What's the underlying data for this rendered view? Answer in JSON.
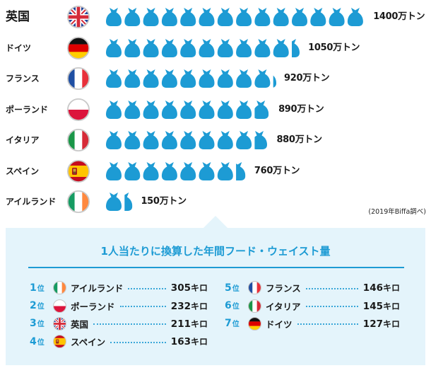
{
  "chart_data": [
    {
      "type": "bar",
      "categories": [
        "英国",
        "ドイツ",
        "フランス",
        "ポーランド",
        "イタリア",
        "スペイン",
        "アイルランド"
      ],
      "values": [
        1400,
        1050,
        920,
        890,
        880,
        760,
        150
      ],
      "value_unit": "万トン",
      "flags": [
        "uk-flag-icon",
        "germany-flag-icon",
        "france-flag-icon",
        "poland-flag-icon",
        "italy-flag-icon",
        "spain-flag-icon",
        "ireland-flag-icon"
      ],
      "icon": "garbage-bag-icon",
      "color": "#1d9bd4"
    },
    {
      "type": "table",
      "title": "1人当たりに換算した年間フード・ウェイスト量",
      "rank_suffix": "位",
      "value_unit": "キロ",
      "rows": [
        {
          "rank": 1,
          "country": "アイルランド",
          "flag": "ireland-flag-icon",
          "value": 305
        },
        {
          "rank": 2,
          "country": "ポーランド",
          "flag": "poland-flag-icon",
          "value": 232
        },
        {
          "rank": 3,
          "country": "英国",
          "flag": "uk-flag-icon",
          "value": 211
        },
        {
          "rank": 4,
          "country": "スペイン",
          "flag": "spain-flag-icon",
          "value": 163
        },
        {
          "rank": 5,
          "country": "フランス",
          "flag": "france-flag-icon",
          "value": 146
        },
        {
          "rank": 6,
          "country": "イタリア",
          "flag": "italy-flag-icon",
          "value": 145
        },
        {
          "rank": 7,
          "country": "ドイツ",
          "flag": "germany-flag-icon",
          "value": 127
        }
      ]
    }
  ],
  "source_note": "(2019年Biffa調べ)",
  "colors": {
    "accent": "#1d9bd4",
    "panel_bg": "#e4f4fb"
  }
}
